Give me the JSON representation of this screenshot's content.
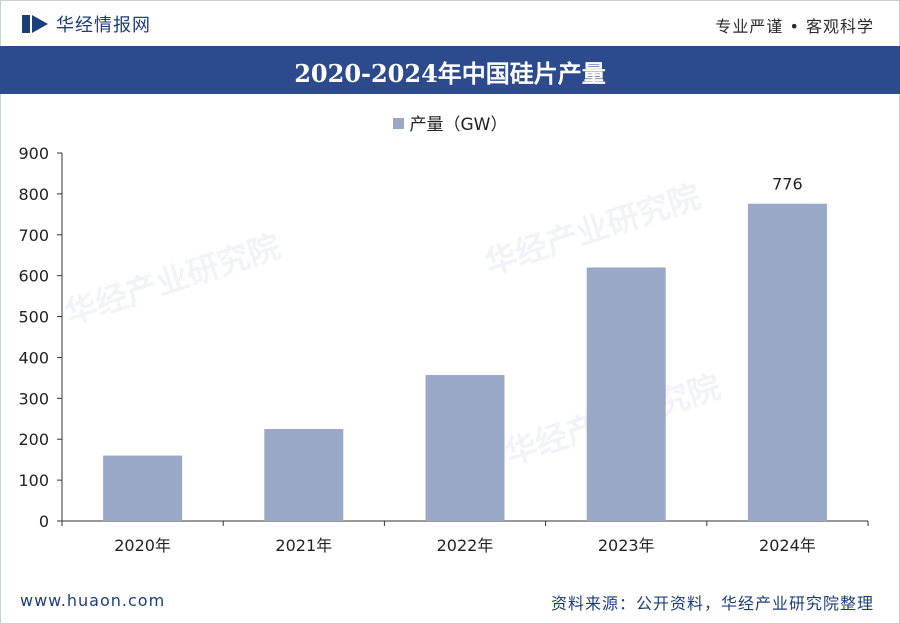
{
  "header": {
    "brand": "华经情报网",
    "slogan": "专业严谨 • 客观科学"
  },
  "footer": {
    "website": "www.huaon.com",
    "source": "资料来源：公开资料，华经产业研究院整理"
  },
  "colors": {
    "title_bg": "#2c4a8c",
    "bar": "#98a8c6",
    "brand": "#1d3e79"
  },
  "chart_data": {
    "type": "bar",
    "title": "2020-2024年中国硅片产量",
    "categories": [
      "2020年",
      "2021年",
      "2022年",
      "2023年",
      "2024年"
    ],
    "series": [
      {
        "name": "产量（GW）",
        "values": [
          160,
          225,
          357,
          620,
          776
        ]
      }
    ],
    "data_labels": [
      null,
      null,
      null,
      null,
      "776"
    ],
    "ylim": [
      0,
      900
    ],
    "yticks": [
      0,
      100,
      200,
      300,
      400,
      500,
      600,
      700,
      800,
      900
    ],
    "grid": false,
    "legend": "top-center",
    "xlabel": "",
    "ylabel": ""
  }
}
